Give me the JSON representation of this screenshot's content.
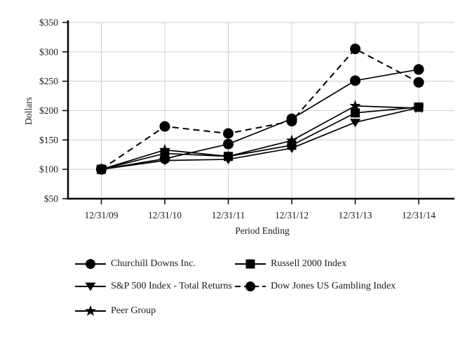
{
  "chart_data": {
    "type": "line",
    "title": "",
    "xlabel": "Period Ending",
    "ylabel": "Dollars",
    "categories": [
      "12/31/09",
      "12/31/10",
      "12/31/11",
      "12/31/12",
      "12/31/13",
      "12/31/14"
    ],
    "y_tick_values": [
      350,
      300,
      250,
      200,
      150,
      100,
      50
    ],
    "y_tick_labels": [
      "$350",
      "$300",
      "$250",
      "$200",
      "$150",
      "$100",
      "$50"
    ],
    "ylim": [
      50,
      350
    ],
    "grid": true,
    "legend_position": "bottom",
    "series": [
      {
        "name": "Churchill Downs Inc.",
        "marker": "circle",
        "line_style": "solid",
        "values": [
          100,
          118,
          143,
          186,
          251,
          270
        ]
      },
      {
        "name": "Russell 2000 Index",
        "marker": "square",
        "line_style": "solid",
        "values": [
          100,
          127,
          122,
          141,
          196,
          206
        ]
      },
      {
        "name": "S&P 500 Index - Total Returns",
        "marker": "triangle-down",
        "line_style": "solid",
        "values": [
          100,
          115,
          117,
          136,
          180,
          205
        ]
      },
      {
        "name": "Dow Jones US Gambling Index",
        "marker": "circle",
        "line_style": "dashed",
        "values": [
          100,
          173,
          161,
          182,
          305,
          248
        ]
      },
      {
        "name": "Peer Group",
        "marker": "star",
        "line_style": "solid",
        "values": [
          100,
          133,
          122,
          149,
          208,
          204
        ]
      }
    ],
    "colors": {
      "series": "#000000",
      "grid": "#cccccc",
      "axis": "#000000",
      "background": "#ffffff",
      "text": "#1a1a1a"
    }
  }
}
